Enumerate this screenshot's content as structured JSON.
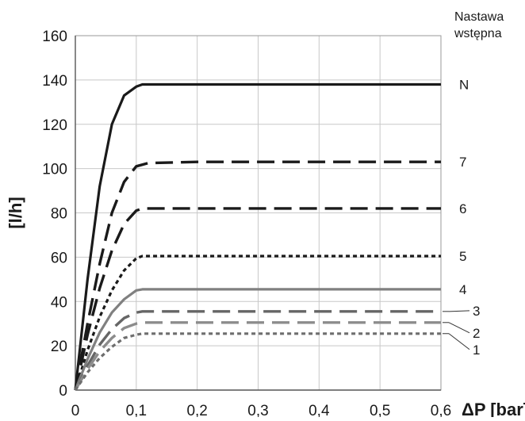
{
  "chart_data": {
    "type": "line",
    "xlabel": "ΔP [bar]",
    "ylabel": "[l/h]",
    "xlim": [
      0,
      0.6
    ],
    "ylim": [
      0,
      160
    ],
    "x_ticks": [
      0,
      0.1,
      0.2,
      0.3,
      0.4,
      0.5,
      0.6
    ],
    "x_tick_labels": [
      "0",
      "0,1",
      "0,2",
      "0,3",
      "0,4",
      "0,5",
      "0,6"
    ],
    "y_ticks": [
      0,
      20,
      40,
      60,
      80,
      100,
      120,
      140,
      160
    ],
    "y_tick_labels": [
      "0",
      "20",
      "40",
      "60",
      "80",
      "100",
      "120",
      "140",
      "160"
    ],
    "grid": true,
    "legend_title": [
      "Nastawa",
      "wstępna"
    ],
    "series": [
      {
        "name": "N",
        "plateau": 138,
        "saturation_x": 0.11,
        "color": "#1a1a1a",
        "style": "solid",
        "x": [
          0,
          0.02,
          0.04,
          0.06,
          0.08,
          0.1,
          0.11,
          0.2,
          0.3,
          0.4,
          0.5,
          0.6
        ],
        "y": [
          0,
          50,
          92,
          120,
          133,
          137,
          138,
          138,
          138,
          138,
          138,
          138
        ]
      },
      {
        "name": "7",
        "plateau": 103,
        "saturation_x": 0.12,
        "color": "#1a1a1a",
        "style": "dashed",
        "x": [
          0,
          0.02,
          0.04,
          0.06,
          0.08,
          0.1,
          0.12,
          0.2,
          0.3,
          0.4,
          0.5,
          0.6
        ],
        "y": [
          0,
          30,
          57,
          80,
          94,
          101,
          102.5,
          103,
          103,
          103,
          103,
          103
        ]
      },
      {
        "name": "6",
        "plateau": 82,
        "saturation_x": 0.11,
        "color": "#1a1a1a",
        "style": "dashed",
        "x": [
          0,
          0.02,
          0.04,
          0.06,
          0.08,
          0.1,
          0.11,
          0.2,
          0.3,
          0.4,
          0.5,
          0.6
        ],
        "y": [
          0,
          25,
          46,
          63,
          75,
          81,
          82,
          82,
          82,
          82,
          82,
          82
        ]
      },
      {
        "name": "5",
        "plateau": 60.5,
        "saturation_x": 0.11,
        "color": "#1a1a1a",
        "style": "dotted",
        "x": [
          0,
          0.02,
          0.04,
          0.06,
          0.08,
          0.1,
          0.11,
          0.2,
          0.3,
          0.4,
          0.5,
          0.6
        ],
        "y": [
          0,
          18,
          33,
          45,
          54,
          59.5,
          60.5,
          60.5,
          60.5,
          60.5,
          60.5,
          60.5
        ]
      },
      {
        "name": "4",
        "plateau": 45.5,
        "saturation_x": 0.11,
        "color": "#808080",
        "style": "solid",
        "x": [
          0,
          0.02,
          0.04,
          0.06,
          0.08,
          0.1,
          0.11,
          0.2,
          0.3,
          0.4,
          0.5,
          0.6
        ],
        "y": [
          0,
          14,
          26,
          35,
          41,
          45,
          45.5,
          45.5,
          45.5,
          45.5,
          45.5,
          45.5
        ]
      },
      {
        "name": "3",
        "plateau": 35.5,
        "saturation_x": 0.11,
        "color": "#666666",
        "style": "dashed",
        "x": [
          0,
          0.02,
          0.04,
          0.06,
          0.08,
          0.1,
          0.11,
          0.2,
          0.3,
          0.4,
          0.5,
          0.6
        ],
        "y": [
          0,
          11,
          20.5,
          27.5,
          32.5,
          35,
          35.5,
          35.5,
          35.5,
          35.5,
          35.5,
          35.5
        ]
      },
      {
        "name": "2",
        "plateau": 30.5,
        "saturation_x": 0.11,
        "color": "#8c8c8c",
        "style": "dashed",
        "x": [
          0,
          0.02,
          0.04,
          0.06,
          0.08,
          0.1,
          0.11,
          0.2,
          0.3,
          0.4,
          0.5,
          0.6
        ],
        "y": [
          0,
          9.5,
          17.5,
          23.5,
          28,
          30,
          30.5,
          30.5,
          30.5,
          30.5,
          30.5,
          30.5
        ]
      },
      {
        "name": "1",
        "plateau": 25.5,
        "saturation_x": 0.11,
        "color": "#6e6e6e",
        "style": "dotted",
        "x": [
          0,
          0.02,
          0.04,
          0.06,
          0.08,
          0.1,
          0.11,
          0.2,
          0.3,
          0.4,
          0.5,
          0.6
        ],
        "y": [
          0,
          8,
          14.5,
          19.5,
          23.5,
          25,
          25.5,
          25.5,
          25.5,
          25.5,
          25.5,
          25.5
        ]
      }
    ]
  }
}
